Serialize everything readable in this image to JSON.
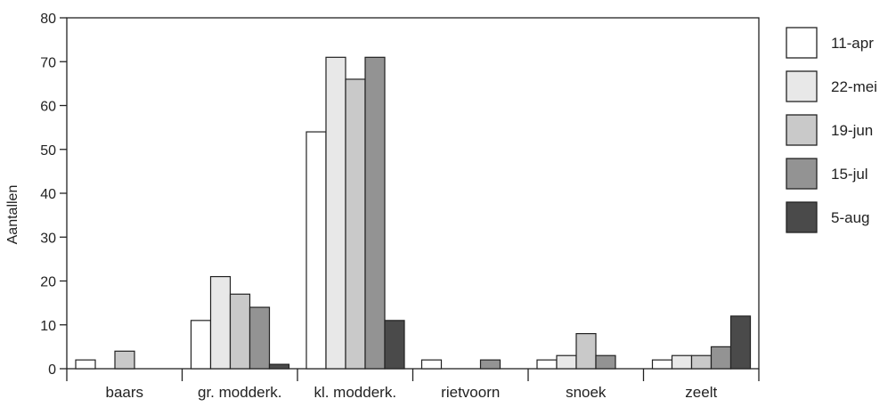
{
  "chart_data": {
    "type": "bar",
    "title": "",
    "xlabel": "",
    "ylabel": "Aantallen",
    "ylim": [
      0,
      80
    ],
    "yticks": [
      0,
      10,
      20,
      30,
      40,
      50,
      60,
      70,
      80
    ],
    "grid": false,
    "legend_position": "right",
    "categories": [
      "baars",
      "gr. modderk.",
      "kl. modderk.",
      "rietvoorn",
      "snoek",
      "zeelt"
    ],
    "series": [
      {
        "name": "11-apr",
        "color": "#ffffff",
        "values": [
          2,
          11,
          54,
          2,
          2,
          2
        ]
      },
      {
        "name": "22-mei",
        "color": "#e8e8e8",
        "values": [
          0,
          21,
          71,
          0,
          3,
          3
        ]
      },
      {
        "name": "19-jun",
        "color": "#c9c9c9",
        "values": [
          4,
          17,
          66,
          0,
          8,
          3
        ]
      },
      {
        "name": "15-jul",
        "color": "#939393",
        "values": [
          0,
          14,
          71,
          2,
          3,
          5
        ]
      },
      {
        "name": "5-aug",
        "color": "#4a4a4a",
        "values": [
          0,
          1,
          11,
          0,
          0,
          12
        ]
      }
    ]
  }
}
